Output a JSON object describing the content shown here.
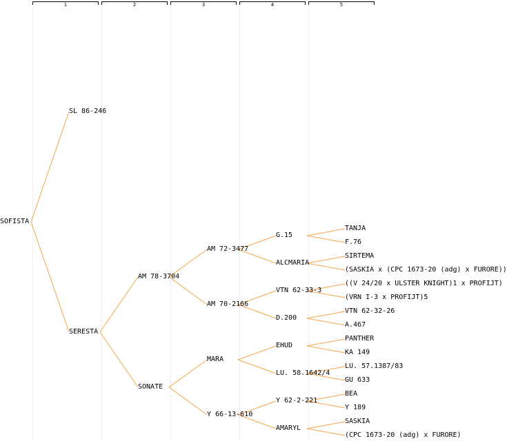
{
  "columns": [
    "1",
    "2",
    "3",
    "4",
    "5"
  ],
  "nodes": {
    "root": "SOFISTA",
    "sire": "SL 86-246",
    "dam": "SERESTA",
    "dam_sire": "AM 78-3704",
    "dam_dam": "SONATE",
    "g3_1": "AM 72-3477",
    "g3_2": "AM 70-2166",
    "g3_3": "MARA",
    "g3_4": "Y 66-13-610",
    "g4_1": "G.15",
    "g4_2": "ALCMARIA",
    "g4_3": "VTN 62-33-3",
    "g4_4": "D.200",
    "g4_5": "EHUD",
    "g4_6": "LU. 58.1642/4",
    "g4_7": "Y 62-2-221",
    "g4_8": "AMARYL",
    "g5_1": "TANJA",
    "g5_2": "F.76",
    "g5_3": "SIRTEMA",
    "g5_4": "(SASKIA x (CPC 1673-20 (adg) x FURORE))",
    "g5_5": "((V 24/20 x ULSTER KNIGHT)1 x PROFIJT)",
    "g5_6": "(VRN I-3 x PROFIJT)5",
    "g5_7": "VTN 62-32-26",
    "g5_8": "A.467",
    "g5_9": "PANTHER",
    "g5_10": "KA 149",
    "g5_11": "LU. 57.1387/83",
    "g5_12": "GU 633",
    "g5_13": "BEA",
    "g5_14": "Y 189",
    "g5_15": "SASKIA",
    "g5_16": "(CPC 1673-20 (adg) x FURORE)"
  },
  "edges": [
    [
      "root",
      "sire"
    ],
    [
      "root",
      "dam"
    ],
    [
      "dam",
      "dam_sire"
    ],
    [
      "dam",
      "dam_dam"
    ],
    [
      "dam_sire",
      "g3_1"
    ],
    [
      "dam_sire",
      "g3_2"
    ],
    [
      "dam_dam",
      "g3_3"
    ],
    [
      "dam_dam",
      "g3_4"
    ],
    [
      "g3_1",
      "g4_1"
    ],
    [
      "g3_1",
      "g4_2"
    ],
    [
      "g3_2",
      "g4_3"
    ],
    [
      "g3_2",
      "g4_4"
    ],
    [
      "g3_3",
      "g4_5"
    ],
    [
      "g3_3",
      "g4_6"
    ],
    [
      "g3_4",
      "g4_7"
    ],
    [
      "g3_4",
      "g4_8"
    ],
    [
      "g4_1",
      "g5_1"
    ],
    [
      "g4_1",
      "g5_2"
    ],
    [
      "g4_2",
      "g5_3"
    ],
    [
      "g4_2",
      "g5_4"
    ],
    [
      "g4_3",
      "g5_5"
    ],
    [
      "g4_3",
      "g5_6"
    ],
    [
      "g4_4",
      "g5_7"
    ],
    [
      "g4_4",
      "g5_8"
    ],
    [
      "g4_5",
      "g5_9"
    ],
    [
      "g4_5",
      "g5_10"
    ],
    [
      "g4_6",
      "g5_11"
    ],
    [
      "g4_6",
      "g5_12"
    ],
    [
      "g4_7",
      "g5_13"
    ],
    [
      "g4_7",
      "g5_14"
    ],
    [
      "g4_8",
      "g5_15"
    ],
    [
      "g4_8",
      "g5_16"
    ]
  ],
  "colors": {
    "edge": "#f4a64a",
    "guide": "#ececec"
  }
}
